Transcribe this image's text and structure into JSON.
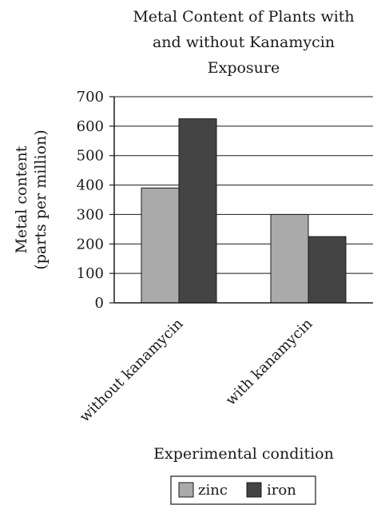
{
  "chart_data": {
    "type": "bar",
    "title_lines": [
      "Metal Content of Plants with",
      "and without Kanamycin",
      "Exposure"
    ],
    "ylabel_lines": [
      "Metal content",
      "(parts per million)"
    ],
    "xlabel": "Experimental condition",
    "categories": [
      "without kanamycin",
      "with kanamycin"
    ],
    "series": [
      {
        "name": "zinc",
        "values": [
          390,
          300
        ],
        "color": "#aaaaaa"
      },
      {
        "name": "iron",
        "values": [
          625,
          225
        ],
        "color": "#444444"
      }
    ],
    "yticks": [
      0,
      100,
      200,
      300,
      400,
      500,
      600,
      700
    ],
    "ylim": [
      0,
      700
    ],
    "grid": "horizontal",
    "legend_position": "bottom-center"
  }
}
